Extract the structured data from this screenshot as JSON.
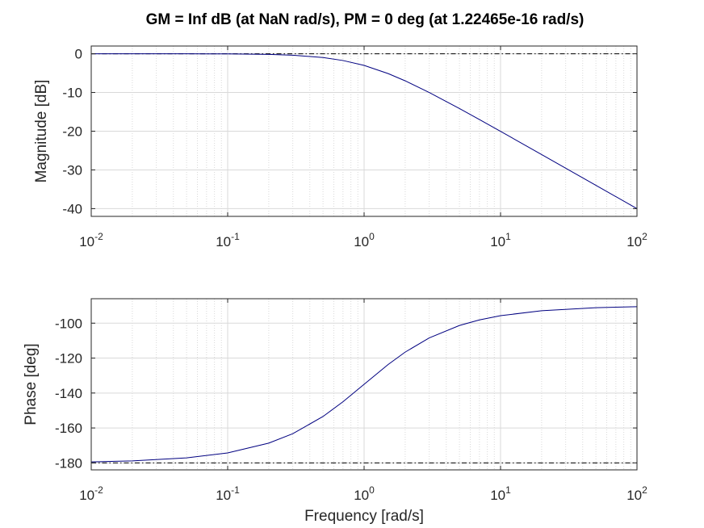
{
  "title": "GM = Inf dB (at NaN rad/s),   PM = 0 deg (at 1.22465e-16 rad/s)",
  "chart_data": [
    {
      "type": "line",
      "id": "magnitude",
      "xscale": "log",
      "xlim": [
        0.01,
        100
      ],
      "ylim": [
        -42,
        2
      ],
      "xticks": [
        0.01,
        0.1,
        1,
        10,
        100
      ],
      "xtick_labels": [
        {
          "base": "10",
          "exp": "-2"
        },
        {
          "base": "10",
          "exp": "-1"
        },
        {
          "base": "10",
          "exp": "0"
        },
        {
          "base": "10",
          "exp": "1"
        },
        {
          "base": "10",
          "exp": "2"
        }
      ],
      "yticks": [
        0,
        -10,
        -20,
        -30,
        -40
      ],
      "ytick_labels": [
        "0",
        "-10",
        "-20",
        "-30",
        "-40"
      ],
      "ylabel": "Magnitude [dB]",
      "xlabel": "",
      "grid": true,
      "reference_line": 0,
      "series": [
        {
          "color": "#000080",
          "x": [
            0.01,
            0.02,
            0.05,
            0.1,
            0.2,
            0.3,
            0.5,
            0.7,
            1,
            1.5,
            2,
            3,
            5,
            7,
            10,
            20,
            50,
            100
          ],
          "y": [
            0,
            0,
            -0.01,
            -0.04,
            -0.17,
            -0.37,
            -0.97,
            -1.74,
            -3.01,
            -5.12,
            -6.99,
            -10.0,
            -14.15,
            -17.0,
            -20.04,
            -26.03,
            -33.98,
            -40.0
          ]
        }
      ]
    },
    {
      "type": "line",
      "id": "phase",
      "xscale": "log",
      "xlim": [
        0.01,
        100
      ],
      "ylim": [
        -184,
        -86
      ],
      "xticks": [
        0.01,
        0.1,
        1,
        10,
        100
      ],
      "xtick_labels": [
        {
          "base": "10",
          "exp": "-2"
        },
        {
          "base": "10",
          "exp": "-1"
        },
        {
          "base": "10",
          "exp": "0"
        },
        {
          "base": "10",
          "exp": "1"
        },
        {
          "base": "10",
          "exp": "2"
        }
      ],
      "yticks": [
        -100,
        -120,
        -140,
        -160,
        -180
      ],
      "ytick_labels": [
        "-100",
        "-120",
        "-140",
        "-160",
        "-180"
      ],
      "ylabel": "Phase [deg]",
      "xlabel": "Frequency [rad/s]",
      "grid": true,
      "reference_line": -180,
      "series": [
        {
          "color": "#000080",
          "x": [
            0.01,
            0.02,
            0.05,
            0.1,
            0.2,
            0.3,
            0.5,
            0.7,
            1,
            1.5,
            2,
            3,
            5,
            7,
            10,
            20,
            50,
            100
          ],
          "y": [
            -179.43,
            -178.85,
            -177.14,
            -174.29,
            -168.69,
            -163.3,
            -153.43,
            -145.01,
            -135.0,
            -123.69,
            -116.57,
            -108.43,
            -101.31,
            -98.13,
            -95.71,
            -92.86,
            -91.15,
            -90.57
          ]
        }
      ]
    }
  ]
}
